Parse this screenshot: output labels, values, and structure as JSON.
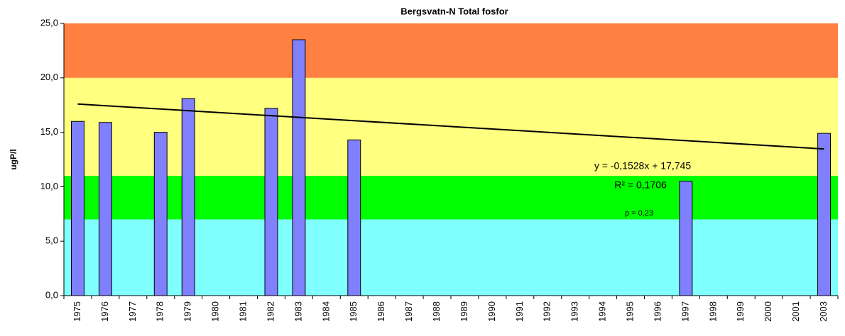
{
  "chart_data": {
    "type": "bar",
    "title": "Bergsvatn-N Total fosfor",
    "y_label": "ugP/l",
    "categories": [
      "1975",
      "1976",
      "1977",
      "1978",
      "1979",
      "1980",
      "1981",
      "1982",
      "1983",
      "1984",
      "1985",
      "1986",
      "1987",
      "1988",
      "1989",
      "1990",
      "1991",
      "1992",
      "1993",
      "1994",
      "1995",
      "1996",
      "1997",
      "1998",
      "1999",
      "2000",
      "2001",
      "2003"
    ],
    "values": [
      16.0,
      15.9,
      null,
      15.0,
      18.1,
      null,
      null,
      17.2,
      23.5,
      null,
      14.3,
      null,
      null,
      null,
      null,
      null,
      null,
      null,
      null,
      null,
      null,
      null,
      10.5,
      null,
      null,
      null,
      null,
      14.9
    ],
    "color": "#8080ff",
    "ylim": [
      0,
      25
    ],
    "yticks": [
      {
        "value": 0,
        "label": "0,0"
      },
      {
        "value": 5,
        "label": "5,0"
      },
      {
        "value": 10,
        "label": "10,0"
      },
      {
        "value": 15,
        "label": "15,0"
      },
      {
        "value": 20,
        "label": "20,0"
      },
      {
        "value": 25,
        "label": "25,0"
      }
    ],
    "bands": [
      {
        "from": 0,
        "to": 7,
        "color": "#80ffff"
      },
      {
        "from": 7,
        "to": 11,
        "color": "#00ff00"
      },
      {
        "from": 11,
        "to": 20,
        "color": "#ffff80"
      },
      {
        "from": 20,
        "to": 25,
        "color": "#ff8040"
      }
    ],
    "trendline": {
      "slope": -0.1528,
      "intercept": 17.745,
      "equation": "y = -0,1528x + 17,745",
      "r2": "R² = 0,1706",
      "p": "p = 0,23"
    }
  }
}
